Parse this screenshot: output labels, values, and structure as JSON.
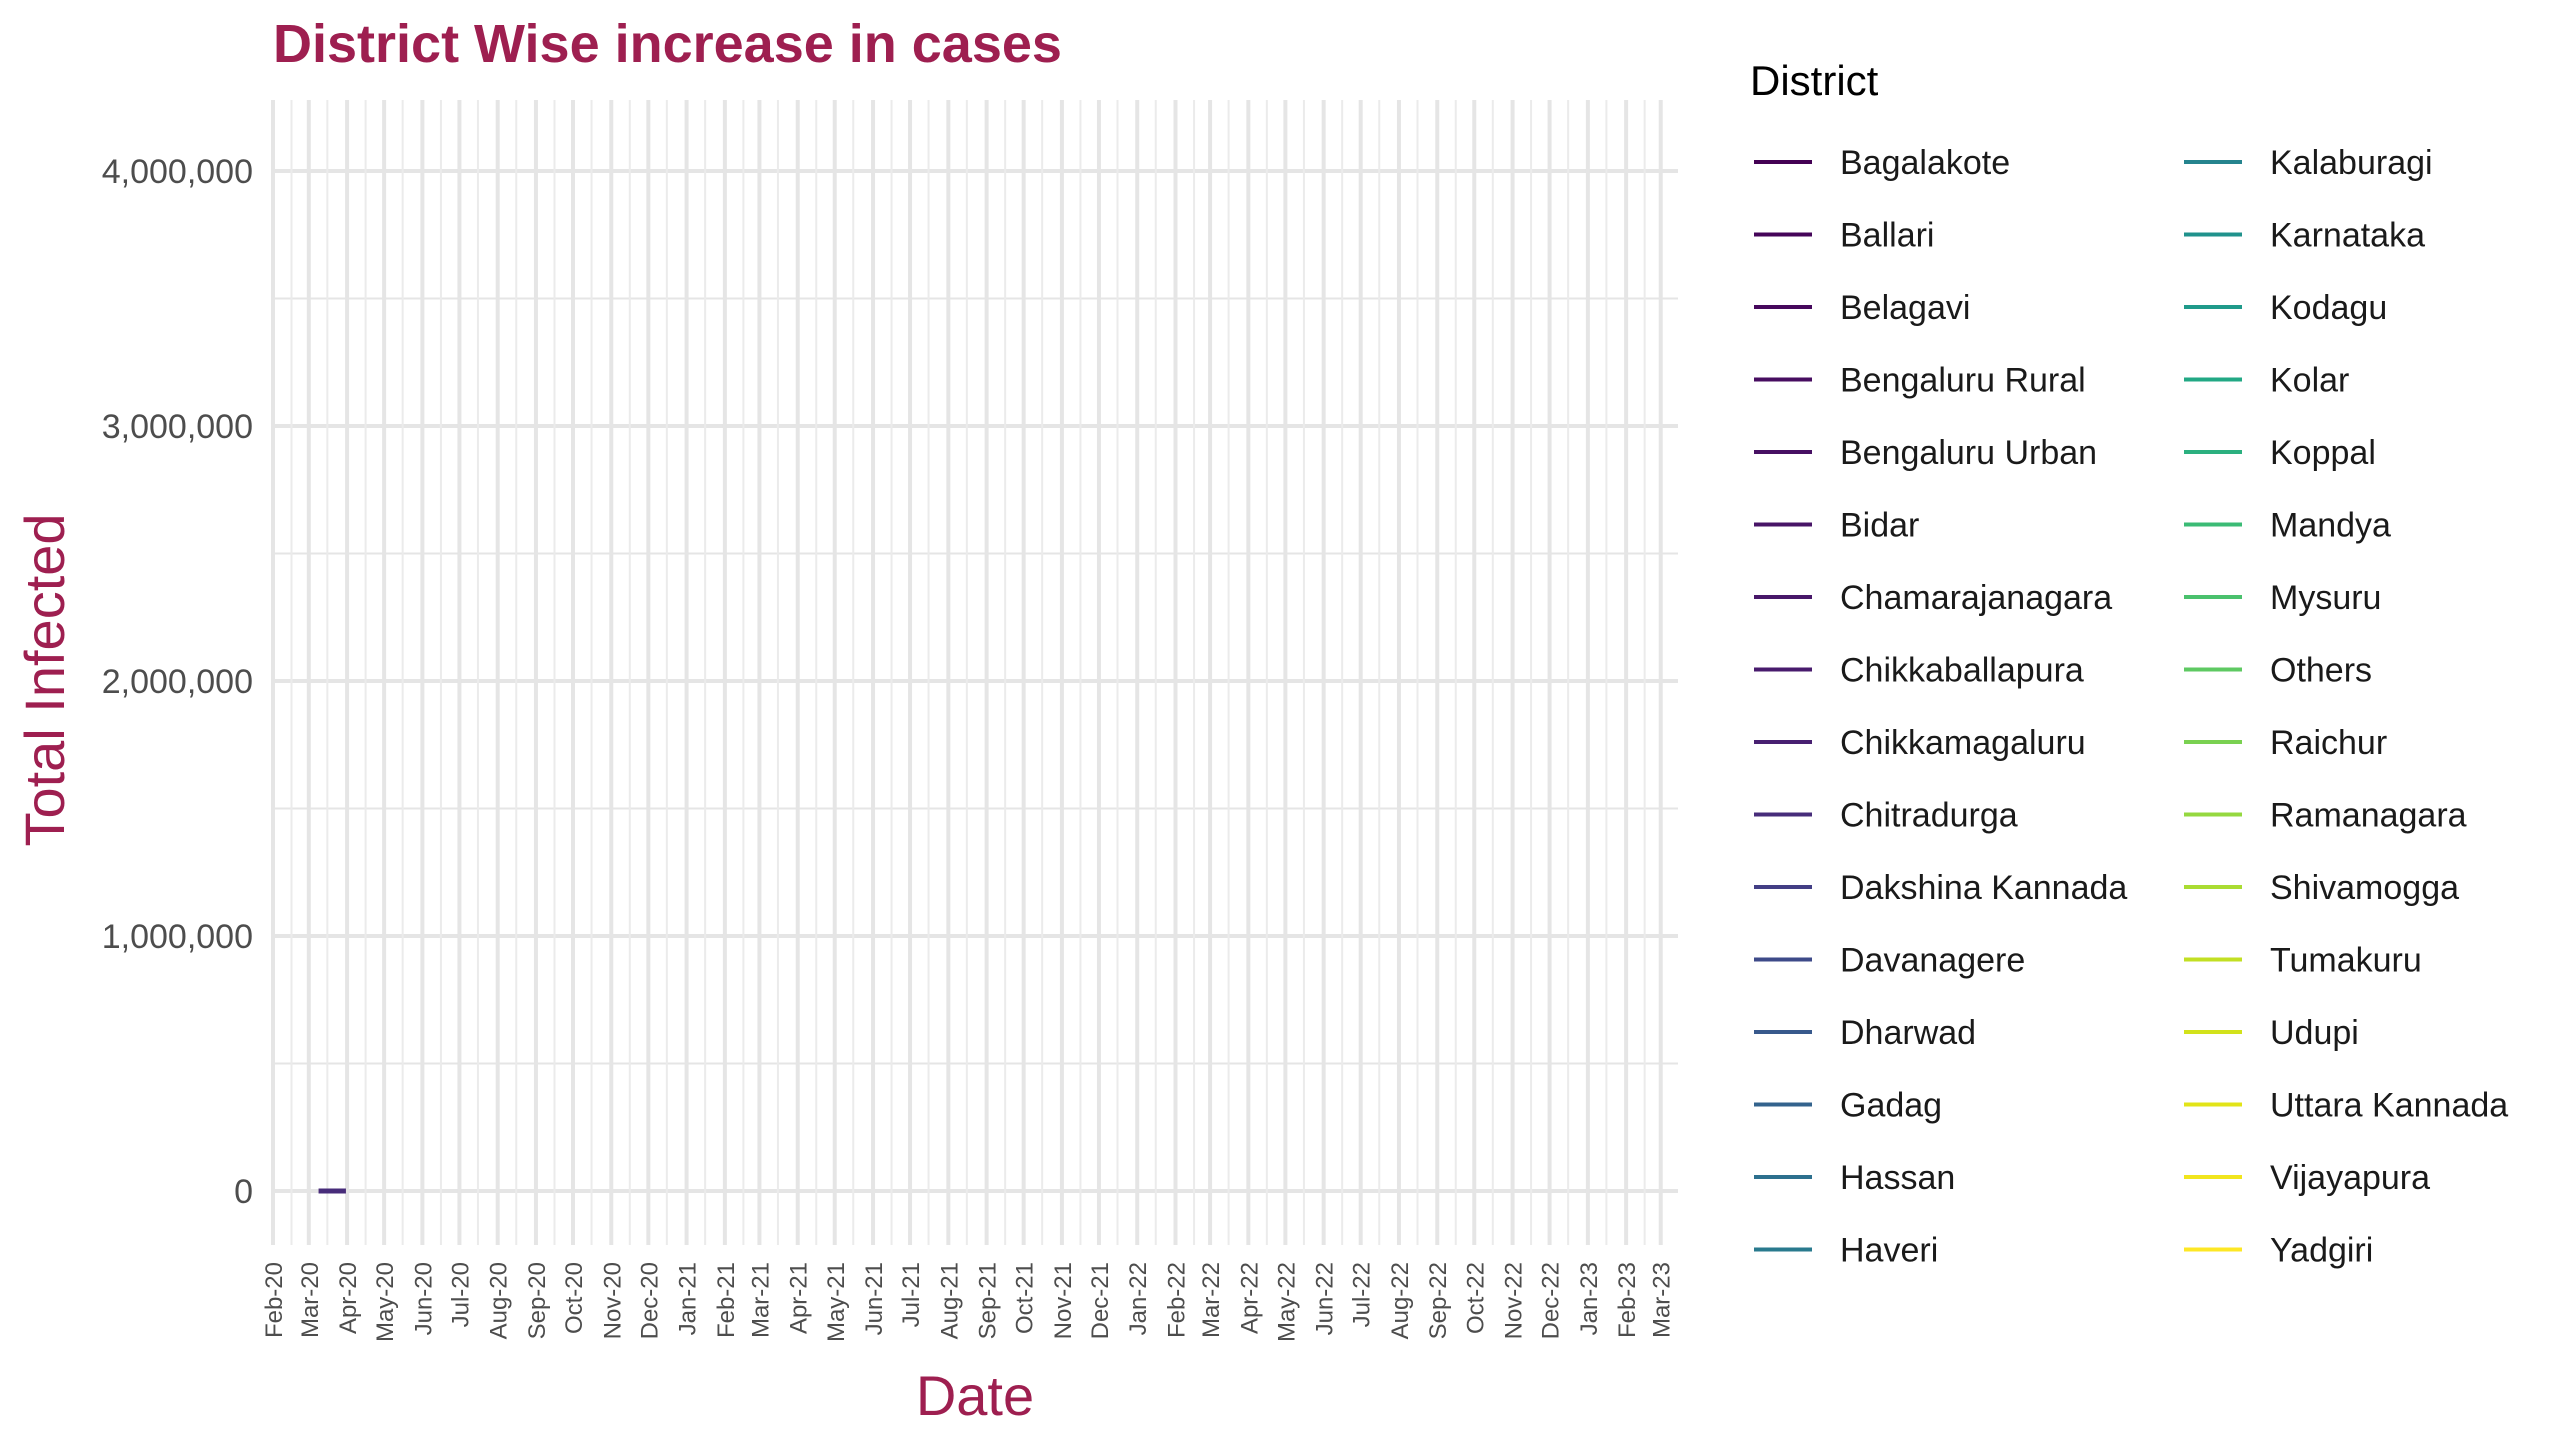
{
  "chart_data": {
    "type": "line",
    "title": "District Wise increase in cases",
    "xlabel": "Date",
    "ylabel": "Total Infected",
    "ylim": [
      -200000,
      4270000
    ],
    "yticks": [
      0,
      1000000,
      2000000,
      3000000,
      4000000
    ],
    "ytick_labels": [
      "0",
      "1,000,000",
      "2,000,000",
      "3,000,000",
      "4,000,000"
    ],
    "x_range": [
      "2020-02-01",
      "2023-03-15"
    ],
    "xtick_labels": [
      "Feb-20",
      "Mar-20",
      "Apr-20",
      "May-20",
      "Jun-20",
      "Jul-20",
      "Aug-20",
      "Sep-20",
      "Oct-20",
      "Nov-20",
      "Dec-20",
      "Jan-21",
      "Feb-21",
      "Mar-21",
      "Apr-21",
      "May-21",
      "Jun-21",
      "Jul-21",
      "Aug-21",
      "Sep-21",
      "Oct-21",
      "Nov-21",
      "Dec-21",
      "Jan-22",
      "Feb-22",
      "Mar-22",
      "Apr-22",
      "May-22",
      "Jun-22",
      "Jul-22",
      "Aug-22",
      "Sep-22",
      "Oct-22",
      "Nov-22",
      "Dec-22",
      "Jan-23",
      "Feb-23",
      "Mar-23"
    ],
    "grid": true,
    "legend": {
      "title": "District",
      "position": "right",
      "columns": 2,
      "entries": [
        "Bagalakote",
        "Ballari",
        "Belagavi",
        "Bengaluru Rural",
        "Bengaluru Urban",
        "Bidar",
        "Chamarajanagara",
        "Chikkaballapura",
        "Chikkamagaluru",
        "Chitradurga",
        "Dakshina Kannada",
        "Davanagere",
        "Dharwad",
        "Gadag",
        "Hassan",
        "Haveri",
        "Kalaburagi",
        "Karnataka",
        "Kodagu",
        "Kolar",
        "Koppal",
        "Mandya",
        "Mysuru",
        "Others",
        "Raichur",
        "Ramanagara",
        "Shivamogga",
        "Tumakuru",
        "Udupi",
        "Uttara Kannada",
        "Vijayapura",
        "Yadgiri"
      ],
      "colors": [
        "#440154",
        "#450559",
        "#46085C",
        "#470D60",
        "#471063",
        "#481467",
        "#481769",
        "#481B6D",
        "#482071",
        "#472C7A",
        "#433E85",
        "#3E4A89",
        "#38598C",
        "#33638D",
        "#2D708E",
        "#297A8E",
        "#25848E",
        "#20928C",
        "#1F9A8A",
        "#22A884",
        "#2BB07F",
        "#3BBB75",
        "#4AC16D",
        "#5EC962",
        "#7AD151",
        "#95D840",
        "#AADC32",
        "#C2DF23",
        "#D2E21B",
        "#E2E418",
        "#F1E51D",
        "#FDE725"
      ]
    },
    "series": [
      {
        "name": "Bengaluru Urban",
        "color": "#471063",
        "points": [
          [
            "2020-03-09",
            0
          ],
          [
            "2020-03-31",
            100
          ]
        ]
      },
      {
        "name": "Chitradurga",
        "color": "#472C7A",
        "points": [
          [
            "2020-03-09",
            0
          ],
          [
            "2020-03-31",
            60
          ]
        ]
      }
    ]
  }
}
